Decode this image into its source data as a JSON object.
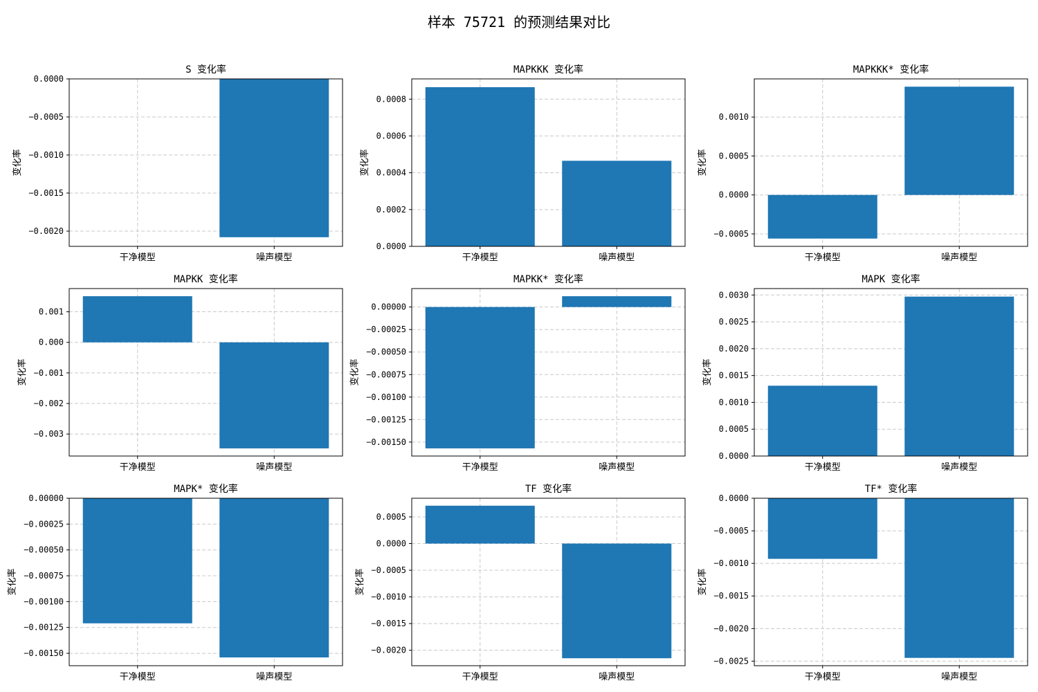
{
  "title": "样本 75721 的预测结果对比",
  "colors": {
    "bar": "#1f77b4",
    "grid": "#c8c8c8",
    "axis": "#000000"
  },
  "chart_data": [
    {
      "type": "bar",
      "title": "S 变化率",
      "ylabel": "变化率",
      "categories": [
        "干净模型",
        "噪声模型"
      ],
      "values": [
        0.0,
        -0.00208
      ],
      "ylim": [
        -0.0022,
        0.0
      ],
      "yticks": [
        0,
        -0.0005,
        -0.001,
        -0.0015,
        -0.002
      ],
      "ytick_labels": [
        "0.0000",
        "−0.0005",
        "−0.0010",
        "−0.0015",
        "−0.0020"
      ],
      "grid": true
    },
    {
      "type": "bar",
      "title": "MAPKKK 变化率",
      "ylabel": "变化率",
      "categories": [
        "干净模型",
        "噪声模型"
      ],
      "values": [
        0.000865,
        0.000465
      ],
      "ylim": [
        0.0,
        0.00091
      ],
      "yticks": [
        0,
        0.0002,
        0.0004,
        0.0006,
        0.0008
      ],
      "ytick_labels": [
        "0.0000",
        "0.0002",
        "0.0004",
        "0.0006",
        "0.0008"
      ],
      "grid": true
    },
    {
      "type": "bar",
      "title": "MAPKKK* 变化率",
      "ylabel": "变化率",
      "categories": [
        "干净模型",
        "噪声模型"
      ],
      "values": [
        -0.00056,
        0.00139
      ],
      "ylim": [
        -0.00066,
        0.00149
      ],
      "yticks": [
        -0.0005,
        0,
        0.0005,
        0.001
      ],
      "ytick_labels": [
        "−0.0005",
        "0.0000",
        "0.0005",
        "0.0010"
      ],
      "grid": true
    },
    {
      "type": "bar",
      "title": "MAPKK 变化率",
      "ylabel": "变化率",
      "categories": [
        "干净模型",
        "噪声模型"
      ],
      "values": [
        0.00151,
        -0.00347
      ],
      "ylim": [
        -0.00372,
        0.00176
      ],
      "yticks": [
        -0.003,
        -0.002,
        -0.001,
        0,
        0.001
      ],
      "ytick_labels": [
        "−0.003",
        "−0.002",
        "−0.001",
        "0.000",
        "0.001"
      ],
      "grid": true
    },
    {
      "type": "bar",
      "title": "MAPKK* 变化率",
      "ylabel": "变化率",
      "categories": [
        "干净模型",
        "噪声模型"
      ],
      "values": [
        -0.00157,
        0.00012
      ],
      "ylim": [
        -0.001655,
        0.000205
      ],
      "yticks": [
        0,
        -0.00025,
        -0.0005,
        -0.00075,
        -0.001,
        -0.00125,
        -0.0015
      ],
      "ytick_labels": [
        "0.00000",
        "−0.00025",
        "−0.00050",
        "−0.00075",
        "−0.00100",
        "−0.00125",
        "−0.00150"
      ],
      "grid": true
    },
    {
      "type": "bar",
      "title": "MAPK 变化率",
      "ylabel": "变化率",
      "categories": [
        "干净模型",
        "噪声模型"
      ],
      "values": [
        0.00131,
        0.00297
      ],
      "ylim": [
        0.0,
        0.00312
      ],
      "yticks": [
        0,
        0.0005,
        0.001,
        0.0015,
        0.002,
        0.0025,
        0.003
      ],
      "ytick_labels": [
        "0.0000",
        "0.0005",
        "0.0010",
        "0.0015",
        "0.0020",
        "0.0025",
        "0.0030"
      ],
      "grid": true
    },
    {
      "type": "bar",
      "title": "MAPK* 变化率",
      "ylabel": "变化率",
      "categories": [
        "干净模型",
        "噪声模型"
      ],
      "values": [
        -0.00121,
        -0.00154
      ],
      "ylim": [
        -0.00162,
        0.0
      ],
      "yticks": [
        0,
        -0.00025,
        -0.0005,
        -0.00075,
        -0.001,
        -0.00125,
        -0.0015
      ],
      "ytick_labels": [
        "0.00000",
        "−0.00025",
        "−0.00050",
        "−0.00075",
        "−0.00100",
        "−0.00125",
        "−0.00150"
      ],
      "grid": true
    },
    {
      "type": "bar",
      "title": "TF 变化率",
      "ylabel": "变化率",
      "categories": [
        "干净模型",
        "噪声模型"
      ],
      "values": [
        0.00071,
        -0.00215
      ],
      "ylim": [
        -0.00229,
        0.00085
      ],
      "yticks": [
        -0.002,
        -0.0015,
        -0.001,
        -0.0005,
        0,
        0.0005
      ],
      "ytick_labels": [
        "−0.0020",
        "−0.0015",
        "−0.0010",
        "−0.0005",
        "0.0000",
        "0.0005"
      ],
      "grid": true
    },
    {
      "type": "bar",
      "title": "TF* 变化率",
      "ylabel": "变化率",
      "categories": [
        "干净模型",
        "噪声模型"
      ],
      "values": [
        -0.00093,
        -0.00245
      ],
      "ylim": [
        -0.00257,
        0.0
      ],
      "yticks": [
        0,
        -0.0005,
        -0.001,
        -0.0015,
        -0.002,
        -0.0025
      ],
      "ytick_labels": [
        "0.0000",
        "−0.0005",
        "−0.0010",
        "−0.0015",
        "−0.0020",
        "−0.0025"
      ],
      "grid": true
    }
  ]
}
